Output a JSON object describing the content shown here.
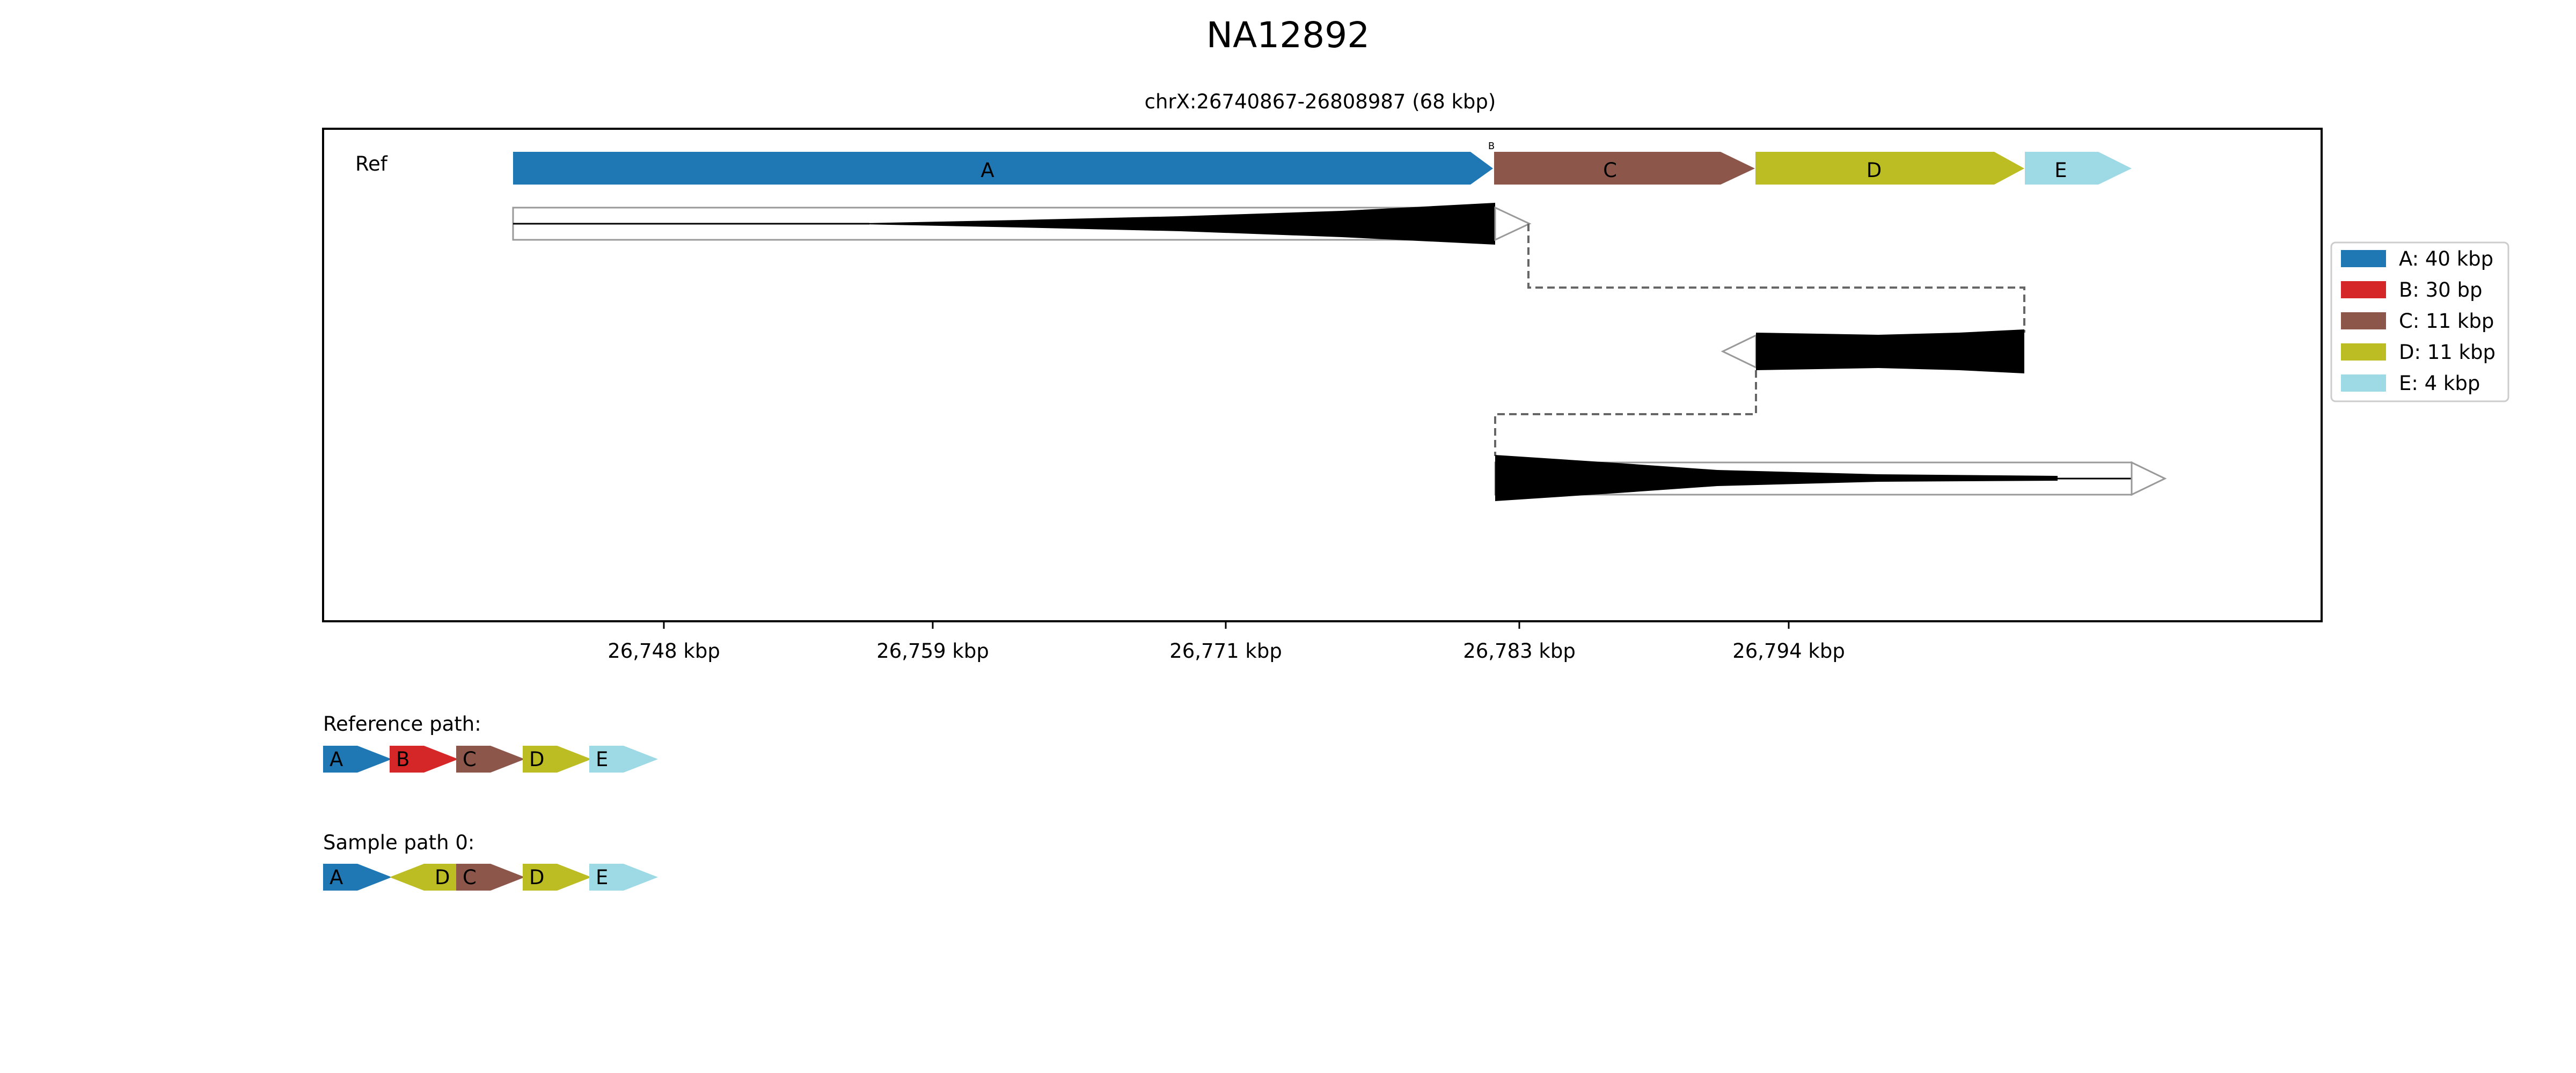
{
  "figure": {
    "title": "NA12892",
    "subtitle": "chrX:26740867-26808987 (68 kbp)",
    "ref_label": "Ref",
    "x_ticks": [
      "26,748 kbp",
      "26,759 kbp",
      "26,771 kbp",
      "26,783 kbp",
      "26,794 kbp"
    ]
  },
  "segments": [
    {
      "id": "A",
      "color": "#1f77b4",
      "legend": "A: 40 kbp"
    },
    {
      "id": "B",
      "color": "#d62728",
      "legend": "B: 30 bp"
    },
    {
      "id": "C",
      "color": "#8c564b",
      "legend": "C: 11 kbp"
    },
    {
      "id": "D",
      "color": "#bcbd22",
      "legend": "D: 11 kbp"
    },
    {
      "id": "E",
      "color": "#9edae5",
      "legend": "E: 4 kbp"
    }
  ],
  "paths": {
    "reference_title": "Reference path:",
    "reference": [
      {
        "id": "A",
        "dir": "+"
      },
      {
        "id": "B",
        "dir": "+"
      },
      {
        "id": "C",
        "dir": "+"
      },
      {
        "id": "D",
        "dir": "+"
      },
      {
        "id": "E",
        "dir": "+"
      }
    ],
    "sample_title": "Sample path 0:",
    "sample": [
      {
        "id": "A",
        "dir": "+"
      },
      {
        "id": "D",
        "dir": "-"
      },
      {
        "id": "C",
        "dir": "+"
      },
      {
        "id": "D",
        "dir": "+"
      },
      {
        "id": "E",
        "dir": "+"
      }
    ]
  }
}
